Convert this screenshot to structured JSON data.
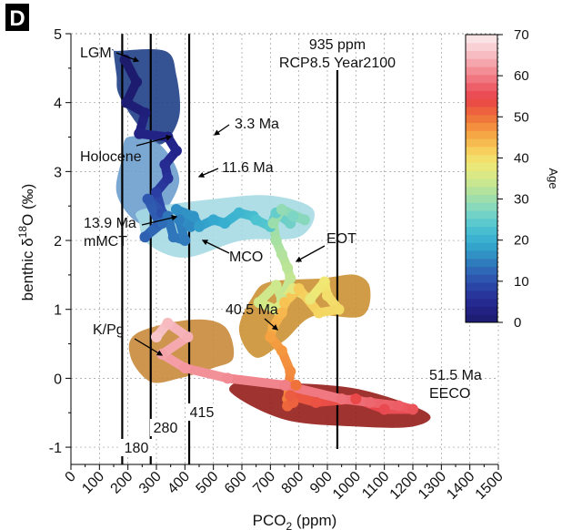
{
  "chart_data": {
    "type": "line",
    "panel_label": "D",
    "xlabel_main": "PCO",
    "xlabel_sub": "2",
    "xlabel_unit": " (ppm)",
    "ylabel_main": "benthic δ",
    "ylabel_sup": "18",
    "ylabel_rest": "O (‰)",
    "xlim": [
      0,
      1500
    ],
    "ylim": [
      -1.25,
      5
    ],
    "x_ticks": [
      0,
      100,
      200,
      300,
      400,
      500,
      600,
      700,
      800,
      900,
      1000,
      1100,
      1200,
      1300,
      1400,
      1500
    ],
    "x_tick_labels": [
      "0",
      "100",
      "200",
      "300",
      "400",
      "500",
      "600",
      "700",
      "800",
      "900",
      "1000",
      "1100",
      "1200",
      "1300",
      "1400",
      "1500"
    ],
    "y_ticks": [
      -1,
      0,
      1,
      2,
      3,
      4,
      5
    ],
    "y_tick_labels": [
      "-1",
      "0",
      "1",
      "2",
      "3",
      "4",
      "5"
    ],
    "grid": true,
    "reference_lines": [
      {
        "x": 180,
        "label": "180"
      },
      {
        "x": 280,
        "label": "280"
      },
      {
        "x": 415,
        "label": "415"
      },
      {
        "x": 935,
        "label": "935 ppm",
        "label2": "RCP8.5 Year2100"
      }
    ],
    "annotations": [
      {
        "text": "LGM",
        "at": [
          178,
          4.62
        ]
      },
      {
        "text": "Holocene",
        "at": [
          280,
          3.5
        ]
      },
      {
        "text": "3.3 Ma",
        "at": [
          460,
          3.55
        ]
      },
      {
        "text": "11.6 Ma",
        "at": [
          410,
          3.05
        ]
      },
      {
        "text": "13.9 Ma",
        "line2": "mMCT",
        "at": [
          330,
          2.3
        ]
      },
      {
        "text": "MCO",
        "at": [
          400,
          2.05
        ]
      },
      {
        "text": "EOT",
        "at": [
          750,
          1.72
        ]
      },
      {
        "text": "40.5 Ma",
        "at": [
          680,
          0.75
        ]
      },
      {
        "text": "K/Pg",
        "at": [
          285,
          0.38
        ]
      },
      {
        "text": "51.5 Ma",
        "line2": "EECO",
        "at": [
          1200,
          -0.45
        ]
      }
    ],
    "colorbar": {
      "label": "Age",
      "range": [
        0,
        70
      ],
      "ticks": [
        0,
        10,
        20,
        30,
        40,
        50,
        60,
        70
      ],
      "tick_labels": [
        "0",
        "10",
        "20",
        "30",
        "40",
        "50",
        "60",
        "70"
      ],
      "colors": [
        "#1b1a6b",
        "#23248a",
        "#2a3ca2",
        "#2f5eb2",
        "#2f86c0",
        "#35acd0",
        "#4fc4d0",
        "#7fd6c4",
        "#a8e0a2",
        "#d2e98a",
        "#f1e874",
        "#f7c655",
        "#f49b3f",
        "#ef6b3a",
        "#e8434a",
        "#ee6a73",
        "#f49aa2",
        "#f8c7cb",
        "#fbecee"
      ]
    },
    "series": [
      {
        "age": [
          0.02,
          0.5,
          1,
          2,
          3,
          3.5,
          4,
          5,
          6,
          8,
          10,
          11,
          11.6,
          12,
          13,
          13.9,
          14,
          14.5,
          15,
          16,
          16.5,
          17,
          18,
          19,
          20,
          21,
          22,
          23,
          24,
          25,
          26,
          27,
          28,
          29,
          30,
          31,
          32,
          33,
          33.5,
          34,
          34.5,
          35,
          36,
          37,
          38,
          39,
          40,
          40.5,
          41,
          42,
          43,
          44,
          45,
          46,
          47,
          48,
          49,
          50,
          51,
          51.5,
          52,
          53,
          54,
          55,
          56,
          57,
          58,
          59,
          60,
          61,
          62,
          63,
          64,
          65,
          66
        ],
        "x": [
          190,
          230,
          195,
          260,
          240,
          340,
          370,
          330,
          340,
          300,
          320,
          270,
          310,
          260,
          320,
          340,
          360,
          400,
          380,
          420,
          370,
          430,
          450,
          500,
          540,
          590,
          640,
          650,
          700,
          720,
          770,
          780,
          820,
          740,
          710,
          720,
          740,
          760,
          770,
          740,
          720,
          660,
          720,
          780,
          840,
          890,
          900,
          940,
          870,
          800,
          750,
          740,
          710,
          700,
          740,
          770,
          760,
          790,
          760,
          780,
          770,
          860,
          1000,
          1100,
          1200,
          1150,
          1050,
          950,
          750,
          550,
          400,
          320,
          410,
          340,
          300
        ],
        "y": [
          4.62,
          4.3,
          4.0,
          3.85,
          3.55,
          3.5,
          3.3,
          3.1,
          2.9,
          2.7,
          2.4,
          2.6,
          2.25,
          2.05,
          2.25,
          2.35,
          2.05,
          2.0,
          2.3,
          2.2,
          2.45,
          2.35,
          2.2,
          2.3,
          2.25,
          2.4,
          2.35,
          2.3,
          2.2,
          2.4,
          2.25,
          2.35,
          2.3,
          2.45,
          2.25,
          2.0,
          1.8,
          1.6,
          1.45,
          1.15,
          1.35,
          1.1,
          1.0,
          1.3,
          1.15,
          1.4,
          1.2,
          1.0,
          0.95,
          1.3,
          1.1,
          0.95,
          0.75,
          0.6,
          0.4,
          0.1,
          -0.3,
          -0.1,
          -0.4,
          -0.35,
          -0.25,
          -0.35,
          -0.3,
          -0.45,
          -0.45,
          -0.4,
          -0.35,
          -0.3,
          -0.1,
          0.0,
          0.15,
          0.35,
          0.6,
          0.8,
          0.6
        ]
      }
    ],
    "envelopes": [
      {
        "name": "LGM-Holocene",
        "color": "#1f3f86",
        "x": [
          160,
          330,
          370,
          380,
          320,
          250,
          170,
          160,
          150
        ],
        "y": [
          4.75,
          4.75,
          4.4,
          3.8,
          3.4,
          3.6,
          4.1,
          4.4,
          4.75
        ]
      },
      {
        "name": "Pliocene-Miocene",
        "color": "#6c9fcd",
        "x": [
          200,
          310,
          380,
          330,
          300,
          220,
          160,
          180
        ],
        "y": [
          3.5,
          3.4,
          2.9,
          2.4,
          2.2,
          2.3,
          2.7,
          3.2
        ]
      },
      {
        "name": "MCO",
        "color": "#a7dae4",
        "x": [
          250,
          500,
          700,
          850,
          800,
          600,
          400,
          270,
          240
        ],
        "y": [
          2.45,
          2.6,
          2.65,
          2.45,
          2.05,
          2.0,
          1.75,
          1.95,
          2.25
        ]
      },
      {
        "name": "EOT-Eocene",
        "color": "#cc9133",
        "x": [
          700,
          880,
          1000,
          1050,
          1020,
          850,
          750,
          650,
          590,
          640
        ],
        "y": [
          1.4,
          1.45,
          1.5,
          1.3,
          0.9,
          0.9,
          0.55,
          0.3,
          0.7,
          1.2
        ]
      },
      {
        "name": "EECO",
        "color": "#951d1a",
        "x": [
          700,
          1000,
          1250,
          1200,
          1000,
          750,
          560,
          620
        ],
        "y": [
          -0.05,
          -0.15,
          -0.5,
          -0.7,
          -0.7,
          -0.6,
          -0.2,
          0.0
        ]
      },
      {
        "name": "K/Pg",
        "color": "#c98a3b",
        "x": [
          230,
          420,
          540,
          570,
          500,
          380,
          280,
          210
        ],
        "y": [
          0.65,
          0.85,
          0.75,
          0.3,
          0.15,
          0.0,
          -0.05,
          0.3
        ]
      }
    ]
  }
}
